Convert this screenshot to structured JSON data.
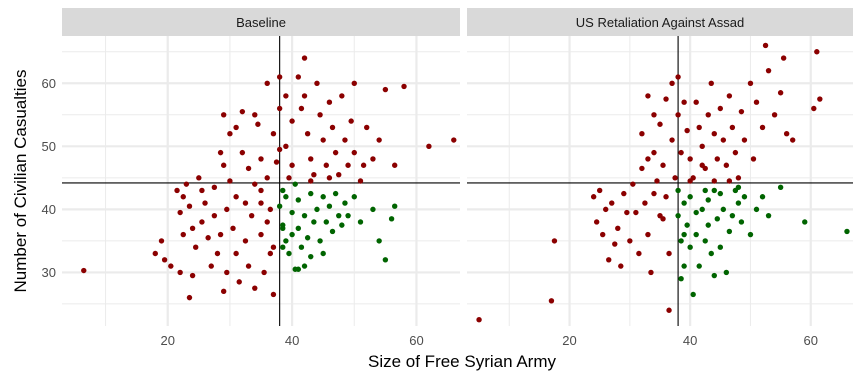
{
  "chart_data": {
    "type": "scatter",
    "xlabel": "Size of Free Syrian Army",
    "ylabel": "Number of Civilian Casualties",
    "xlim": [
      3,
      67
    ],
    "ylim": [
      21.5,
      67.5
    ],
    "x_ticks": [
      20,
      40,
      60
    ],
    "y_ticks": [
      30,
      40,
      50,
      60
    ],
    "grid": true,
    "ref_lines": {
      "vertical_x": 38,
      "horizontal_y": 44.2
    },
    "colors": {
      "above": "#8b0000",
      "below": "#006400",
      "strip": "#d9d9d9",
      "grid": "#ebebeb",
      "line": "#000000"
    },
    "panels": [
      {
        "title": "Baseline",
        "points": [
          [
            6.5,
            30.3
          ],
          [
            18,
            33
          ],
          [
            19,
            35
          ],
          [
            19.5,
            32
          ],
          [
            20.5,
            31
          ],
          [
            21.5,
            43
          ],
          [
            22,
            39.5
          ],
          [
            22,
            30
          ],
          [
            22.5,
            42
          ],
          [
            22.5,
            36
          ],
          [
            23,
            44
          ],
          [
            23.5,
            40.5
          ],
          [
            23.5,
            26
          ],
          [
            24,
            37
          ],
          [
            24.5,
            34
          ],
          [
            24,
            29.5
          ],
          [
            25,
            45
          ],
          [
            25.5,
            43
          ],
          [
            25.5,
            38
          ],
          [
            26,
            41
          ],
          [
            26.5,
            35.5
          ],
          [
            27,
            31
          ],
          [
            27.5,
            43.5
          ],
          [
            27.5,
            39
          ],
          [
            28,
            33
          ],
          [
            28.5,
            36
          ],
          [
            28.5,
            49
          ],
          [
            29,
            55
          ],
          [
            29,
            47
          ],
          [
            29.5,
            40
          ],
          [
            29.5,
            30
          ],
          [
            29,
            27
          ],
          [
            30,
            52
          ],
          [
            30,
            44.5
          ],
          [
            30.5,
            37
          ],
          [
            31,
            53
          ],
          [
            31,
            42
          ],
          [
            31,
            33
          ],
          [
            31.5,
            28.5
          ],
          [
            32,
            55.5
          ],
          [
            32,
            49
          ],
          [
            32.5,
            41
          ],
          [
            32.5,
            35
          ],
          [
            33,
            46.5
          ],
          [
            33,
            31
          ],
          [
            33.5,
            39
          ],
          [
            34,
            44
          ],
          [
            34,
            55
          ],
          [
            34,
            27.5
          ],
          [
            34.5,
            53.5
          ],
          [
            35,
            48
          ],
          [
            35,
            41
          ],
          [
            35,
            36
          ],
          [
            35.5,
            30
          ],
          [
            36,
            60
          ],
          [
            36,
            45
          ],
          [
            36.5,
            33
          ],
          [
            36.5,
            40
          ],
          [
            37,
            52
          ],
          [
            37,
            26.5
          ],
          [
            37.5,
            47.5
          ],
          [
            38,
            61
          ],
          [
            38,
            56
          ],
          [
            38,
            49.5
          ],
          [
            38.5,
            43
          ],
          [
            38.5,
            37
          ],
          [
            39,
            58
          ],
          [
            39,
            50
          ],
          [
            39.5,
            45
          ],
          [
            40,
            54
          ],
          [
            40,
            47
          ],
          [
            41,
            61
          ],
          [
            41.5,
            56
          ],
          [
            42,
            64
          ],
          [
            42,
            58
          ],
          [
            42.5,
            52
          ],
          [
            43,
            48
          ],
          [
            43.5,
            45.5
          ],
          [
            44,
            60
          ],
          [
            44.5,
            55
          ],
          [
            45,
            51
          ],
          [
            45.5,
            47
          ],
          [
            46,
            57
          ],
          [
            46.5,
            53
          ],
          [
            47,
            49
          ],
          [
            47.5,
            45.5
          ],
          [
            48,
            58
          ],
          [
            48.5,
            51
          ],
          [
            49,
            47
          ],
          [
            49.5,
            54
          ],
          [
            50,
            60
          ],
          [
            50,
            49
          ],
          [
            51,
            44.5
          ],
          [
            51.5,
            47
          ],
          [
            52,
            53
          ],
          [
            53,
            48
          ],
          [
            54,
            51
          ],
          [
            55,
            59
          ],
          [
            56.5,
            47
          ],
          [
            58,
            59.5
          ],
          [
            62,
            50
          ],
          [
            66,
            51
          ],
          [
            37,
            34
          ],
          [
            36,
            38
          ],
          [
            35,
            43
          ],
          [
            40.5,
            44
          ],
          [
            43,
            44.5
          ],
          [
            46,
            45
          ],
          [
            38,
            40.5
          ],
          [
            38.5,
            37.5
          ],
          [
            39,
            35
          ],
          [
            39,
            42
          ],
          [
            39.5,
            33
          ],
          [
            40,
            39.5
          ],
          [
            40,
            36
          ],
          [
            40.5,
            30.5
          ],
          [
            41,
            41.5
          ],
          [
            41,
            37
          ],
          [
            41.5,
            34
          ],
          [
            42,
            31
          ],
          [
            42,
            39
          ],
          [
            42.5,
            35.5
          ],
          [
            43,
            42.5
          ],
          [
            43,
            32.5
          ],
          [
            43.5,
            38
          ],
          [
            44,
            40
          ],
          [
            44.5,
            35
          ],
          [
            45,
            42
          ],
          [
            45,
            33
          ],
          [
            45.5,
            38
          ],
          [
            46,
            40.5
          ],
          [
            46.5,
            36.5
          ],
          [
            47,
            42.5
          ],
          [
            47.5,
            39
          ],
          [
            48,
            37.5
          ],
          [
            48.5,
            41
          ],
          [
            49,
            39
          ],
          [
            50,
            42
          ],
          [
            51,
            38
          ],
          [
            53,
            40
          ],
          [
            54,
            35
          ],
          [
            55,
            32
          ],
          [
            56,
            38.5
          ],
          [
            56.5,
            40.5
          ],
          [
            41,
            30.5
          ],
          [
            38.5,
            34
          ]
        ]
      },
      {
        "title": "US Retaliation Against Assad",
        "points": [
          [
            5,
            22.5
          ],
          [
            17,
            25.5
          ],
          [
            17.5,
            35
          ],
          [
            24,
            42
          ],
          [
            24.5,
            38
          ],
          [
            25,
            43
          ],
          [
            25.5,
            36
          ],
          [
            26,
            40
          ],
          [
            26.5,
            32
          ],
          [
            27,
            41
          ],
          [
            27.5,
            34.5
          ],
          [
            28,
            37
          ],
          [
            28.5,
            31
          ],
          [
            29,
            42.5
          ],
          [
            29.5,
            39.5
          ],
          [
            30,
            35
          ],
          [
            30.5,
            44
          ],
          [
            31,
            39.5
          ],
          [
            31.5,
            33
          ],
          [
            32,
            52
          ],
          [
            32,
            46.5
          ],
          [
            32.5,
            41
          ],
          [
            33,
            58
          ],
          [
            33,
            36
          ],
          [
            33.5,
            30
          ],
          [
            34,
            55
          ],
          [
            34,
            49
          ],
          [
            34.5,
            44.5
          ],
          [
            35,
            53.5
          ],
          [
            35,
            39
          ],
          [
            35.5,
            47
          ],
          [
            36,
            57.5
          ],
          [
            36,
            42
          ],
          [
            36.5,
            33
          ],
          [
            37,
            60
          ],
          [
            37,
            51
          ],
          [
            37.5,
            45
          ],
          [
            38,
            61
          ],
          [
            38,
            55
          ],
          [
            38.5,
            49
          ],
          [
            38.5,
            29
          ],
          [
            39,
            57
          ],
          [
            39.5,
            52.5
          ],
          [
            40,
            48
          ],
          [
            40.5,
            45
          ],
          [
            41,
            57
          ],
          [
            41.5,
            53
          ],
          [
            42,
            50
          ],
          [
            42.5,
            46.5
          ],
          [
            43,
            55
          ],
          [
            43.5,
            60
          ],
          [
            44,
            52
          ],
          [
            44.5,
            48
          ],
          [
            45,
            56
          ],
          [
            45.5,
            51
          ],
          [
            46,
            47
          ],
          [
            46.5,
            58
          ],
          [
            47,
            53
          ],
          [
            47.5,
            49
          ],
          [
            48,
            45
          ],
          [
            48.5,
            55.5
          ],
          [
            49,
            51
          ],
          [
            50,
            60
          ],
          [
            50.5,
            48
          ],
          [
            51,
            57
          ],
          [
            52,
            53
          ],
          [
            52.5,
            66
          ],
          [
            53,
            62
          ],
          [
            54,
            55
          ],
          [
            55,
            58.5
          ],
          [
            55.5,
            64
          ],
          [
            56,
            52
          ],
          [
            57,
            51
          ],
          [
            60.5,
            56
          ],
          [
            61,
            65
          ],
          [
            61.5,
            57.5
          ],
          [
            36.5,
            24
          ],
          [
            35.5,
            38.5
          ],
          [
            34,
            42.5
          ],
          [
            33,
            48
          ],
          [
            39,
            41
          ],
          [
            40,
            44.5
          ],
          [
            42,
            47
          ],
          [
            44,
            44.5
          ],
          [
            46.5,
            44.5
          ],
          [
            48,
            43.5
          ],
          [
            38,
            39
          ],
          [
            38,
            43
          ],
          [
            38.5,
            35
          ],
          [
            39,
            31
          ],
          [
            39.5,
            37.5
          ],
          [
            40,
            42
          ],
          [
            40,
            34
          ],
          [
            40.5,
            26.5
          ],
          [
            41,
            39.5
          ],
          [
            41,
            36
          ],
          [
            41.5,
            31
          ],
          [
            42,
            40
          ],
          [
            42.5,
            35
          ],
          [
            43,
            41.5
          ],
          [
            43,
            37.5
          ],
          [
            43.5,
            33
          ],
          [
            44,
            43
          ],
          [
            44,
            29.5
          ],
          [
            44.5,
            38.5
          ],
          [
            45,
            42.5
          ],
          [
            45.5,
            40
          ],
          [
            46,
            30
          ],
          [
            46.5,
            36.5
          ],
          [
            47,
            39
          ],
          [
            47.5,
            43
          ],
          [
            48,
            41
          ],
          [
            48.5,
            38
          ],
          [
            49,
            42
          ],
          [
            50,
            36
          ],
          [
            51,
            40
          ],
          [
            52,
            42
          ],
          [
            53,
            39
          ],
          [
            55,
            43.5
          ],
          [
            59,
            38
          ],
          [
            66,
            36.5
          ],
          [
            39,
            36
          ],
          [
            42.5,
            43
          ],
          [
            45,
            34
          ]
        ]
      }
    ]
  }
}
